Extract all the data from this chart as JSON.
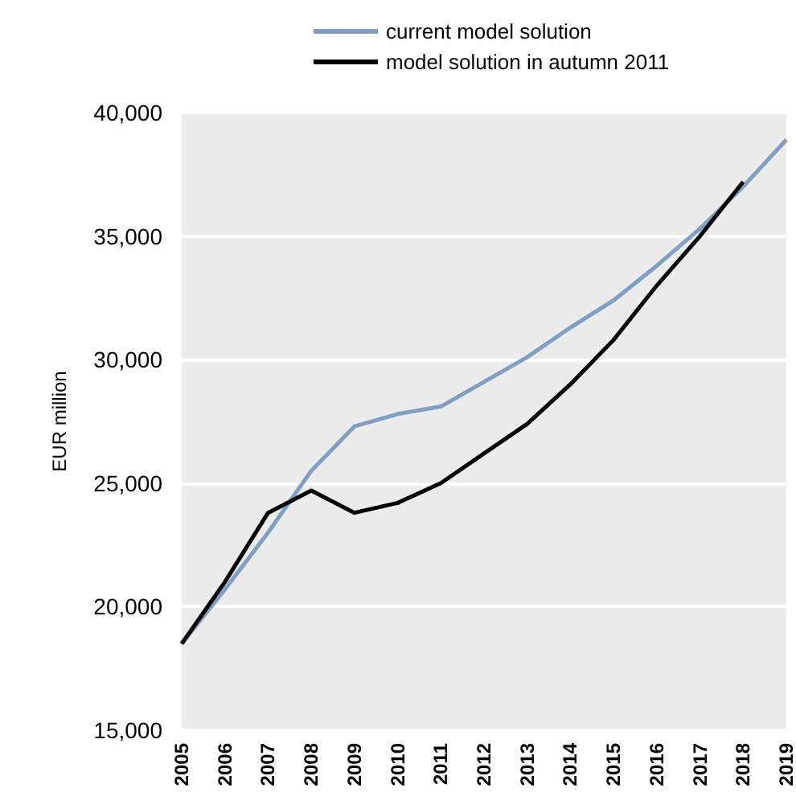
{
  "chart_data": {
    "type": "line",
    "ylabel": "EUR million",
    "categories": [
      "2005",
      "2006",
      "2007",
      "2008",
      "2009",
      "2010",
      "2011",
      "2012",
      "2013",
      "2014",
      "2015",
      "2016",
      "2017",
      "2018",
      "2019"
    ],
    "series": [
      {
        "name": "current model solution",
        "color": "#7f9fc4",
        "values": [
          18500,
          20700,
          23000,
          25500,
          27300,
          27800,
          28100,
          29100,
          30100,
          31300,
          32400,
          33800,
          35300,
          37000,
          38900
        ]
      },
      {
        "name": "model solution in autumn 2011",
        "color": "#000000",
        "values": [
          18500,
          21000,
          23800,
          24700,
          23800,
          24200,
          25000,
          26200,
          27400,
          29000,
          30800,
          33000,
          35000,
          37200,
          null
        ]
      }
    ],
    "ylim": [
      15000,
      40000
    ],
    "yticks": [
      {
        "value": 15000,
        "label": "15,000"
      },
      {
        "value": 20000,
        "label": "20,000"
      },
      {
        "value": 25000,
        "label": "25,000"
      },
      {
        "value": 30000,
        "label": "30,000"
      },
      {
        "value": 35000,
        "label": "35,000"
      },
      {
        "value": 40000,
        "label": "40,000"
      }
    ],
    "grid": "y",
    "legend": "top",
    "marker": "none",
    "line_style": "solid"
  }
}
